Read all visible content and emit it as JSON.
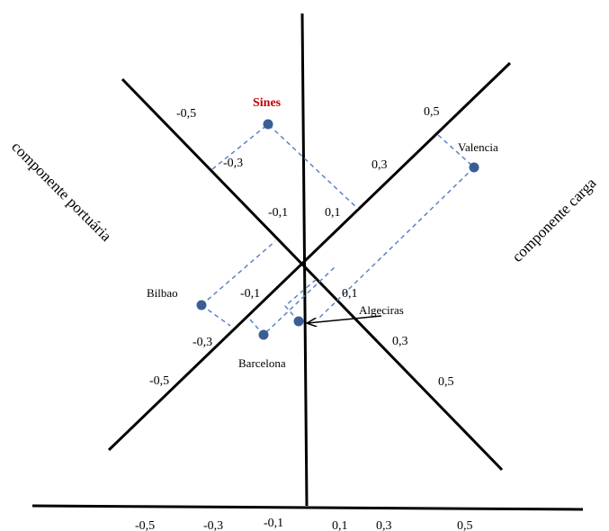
{
  "axis_labels": {
    "portuaria": "componente portuária",
    "carga": "componente carga"
  },
  "ticks": {
    "bottom": [
      "-0,5",
      "-0,3",
      "-0,1",
      "0,1",
      "0,3",
      "0,5"
    ],
    "portuaria_axis": [
      "-0,5",
      "-0,3",
      "-0,1",
      "-0,1",
      "-0,3",
      "-0,5"
    ],
    "carga_axis": [
      "0,5",
      "0,3",
      "0,1",
      "0,1",
      "0,3",
      "0,5"
    ]
  },
  "ports": [
    {
      "name": "Sines",
      "highlight": true
    },
    {
      "name": "Valencia"
    },
    {
      "name": "Bilbao"
    },
    {
      "name": "Barcelona"
    },
    {
      "name": "Algeciras"
    }
  ],
  "colors": {
    "point": "#3a5d94",
    "dashed": "#5b84c4",
    "highlight": "#c00000",
    "axis": "#000000"
  }
}
